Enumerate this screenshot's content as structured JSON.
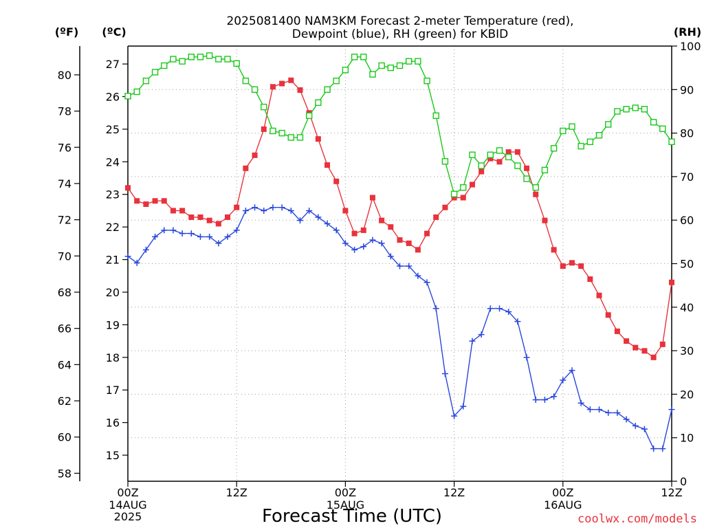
{
  "chart_data": {
    "type": "line",
    "title_lines": [
      "2025081400 NAM3KM Forecast 2-meter Temperature (red),",
      "Dewpoint (blue), RH (green) for KBID"
    ],
    "xlabel": "Forecast Time (UTC)",
    "watermark": "coolwx.com/models",
    "left_unit_f": "(ºF)",
    "left_unit_c": "(ºC)",
    "right_unit": "(RH)",
    "x_range_hours": [
      0,
      60
    ],
    "x_ticks": [
      {
        "h": 0,
        "label": "00Z",
        "sub": [
          "14AUG",
          "2025"
        ]
      },
      {
        "h": 12,
        "label": "12Z",
        "sub": []
      },
      {
        "h": 24,
        "label": "00Z",
        "sub": [
          "15AUG"
        ]
      },
      {
        "h": 36,
        "label": "12Z",
        "sub": []
      },
      {
        "h": 48,
        "label": "00Z",
        "sub": [
          "16AUG"
        ]
      },
      {
        "h": 60,
        "label": "12Z",
        "sub": []
      }
    ],
    "y_celsius": {
      "range": [
        14.2,
        27.55
      ],
      "ticks": [
        15,
        16,
        17,
        18,
        19,
        20,
        21,
        22,
        23,
        24,
        25,
        26,
        27
      ]
    },
    "y_fahrenheit": {
      "range": [
        57.56,
        81.59
      ],
      "ticks": [
        58,
        60,
        62,
        64,
        66,
        68,
        70,
        72,
        74,
        76,
        78,
        80
      ]
    },
    "y_rh": {
      "range": [
        0,
        100
      ],
      "ticks": [
        0,
        10,
        20,
        30,
        40,
        50,
        60,
        70,
        80,
        90,
        100
      ]
    },
    "grid": true,
    "colors": {
      "temperature": "#e8323c",
      "dewpoint": "#2846dc",
      "rh": "#19c819"
    },
    "series": [
      {
        "key": "temperature",
        "unit": "C",
        "marker": "filled-square",
        "values": [
          23.2,
          22.8,
          22.7,
          22.8,
          22.8,
          22.5,
          22.5,
          22.3,
          22.3,
          22.2,
          22.1,
          22.3,
          22.6,
          23.8,
          24.2,
          25.0,
          26.3,
          26.4,
          26.5,
          26.2,
          25.5,
          24.7,
          23.9,
          23.4,
          22.5,
          21.8,
          21.9,
          22.9,
          22.2,
          22.0,
          21.6,
          21.5,
          21.3,
          21.8,
          22.3,
          22.6,
          22.9,
          22.9,
          23.3,
          23.7,
          24.1,
          24.0,
          24.3,
          24.3,
          23.8,
          23.0,
          22.2,
          21.3,
          20.8,
          20.9,
          20.8,
          20.4,
          19.9,
          19.3,
          18.8,
          18.5,
          18.3,
          18.2,
          18.0,
          18.4,
          20.3
        ]
      },
      {
        "key": "dewpoint",
        "unit": "C",
        "marker": "plus",
        "values": [
          21.1,
          20.9,
          21.3,
          21.7,
          21.9,
          21.9,
          21.8,
          21.8,
          21.7,
          21.7,
          21.5,
          21.7,
          21.9,
          22.5,
          22.6,
          22.5,
          22.6,
          22.6,
          22.5,
          22.2,
          22.5,
          22.3,
          22.1,
          21.9,
          21.5,
          21.3,
          21.4,
          21.6,
          21.5,
          21.1,
          20.8,
          20.8,
          20.5,
          20.3,
          19.5,
          17.5,
          16.2,
          16.5,
          18.5,
          18.7,
          19.5,
          19.5,
          19.4,
          19.1,
          18.0,
          16.7,
          16.7,
          16.8,
          17.3,
          17.6,
          16.6,
          16.4,
          16.4,
          16.3,
          16.3,
          16.1,
          15.9,
          15.8,
          15.2,
          15.2,
          16.4
        ]
      },
      {
        "key": "rh",
        "unit": "%",
        "marker": "open-square",
        "values": [
          88.5,
          89.5,
          92.0,
          94.0,
          95.5,
          97.0,
          96.5,
          97.5,
          97.5,
          97.8,
          97.0,
          97.0,
          96.0,
          92.0,
          90.0,
          86.0,
          80.5,
          80.0,
          79.0,
          79.0,
          84.0,
          87.0,
          90.0,
          92.0,
          94.5,
          97.5,
          97.5,
          93.5,
          95.5,
          95.0,
          95.5,
          96.5,
          96.5,
          92.0,
          84.0,
          73.5,
          66.0,
          67.5,
          75.0,
          72.5,
          75.0,
          76.0,
          74.5,
          72.5,
          69.5,
          67.5,
          71.5,
          76.5,
          80.5,
          81.5,
          77.0,
          78.0,
          79.5,
          82.0,
          85.0,
          85.5,
          85.8,
          85.5,
          82.5,
          81.0,
          78.0
        ]
      }
    ]
  }
}
